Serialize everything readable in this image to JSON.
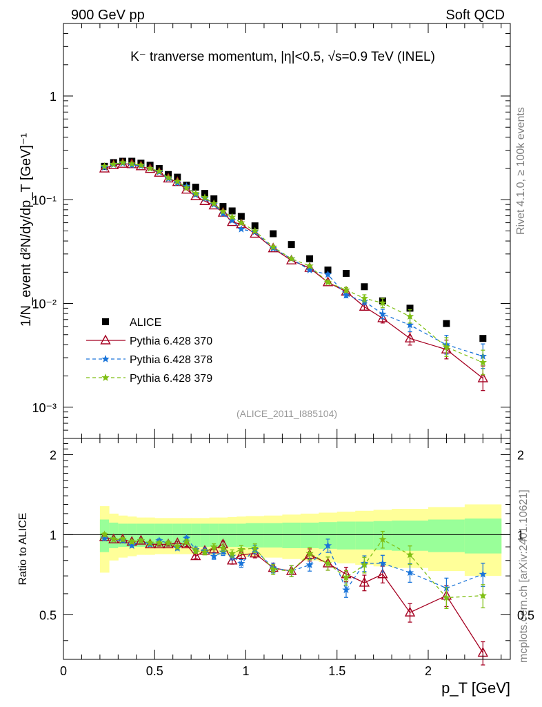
{
  "header": {
    "left": "900 GeV pp",
    "right": "Soft QCD"
  },
  "side_labels": {
    "rivet": "Rivet 4.1.0, ≥ 100k events",
    "mcplots": "mcplots.cern.ch [arXiv:2401.10621]"
  },
  "chart_data": [
    {
      "type": "scatter",
      "panel": "main",
      "title": "K⁻ tranverse momentum, |η|<0.5, √s=0.9 TeV (INEL)",
      "analysis_tag": "(ALICE_2011_I885104)",
      "xlabel": "p_T [GeV]",
      "ylabel": "1/N_event d²N/dy/dp_T [GeV]⁻¹",
      "xlim": [
        0,
        2.45
      ],
      "ylim": [
        0.0005,
        5
      ],
      "yscale": "log",
      "x_ticks": [
        "0",
        "0.5",
        "1",
        "1.5",
        "2"
      ],
      "y_ticks": [
        "10⁻³",
        "10⁻²",
        "10⁻¹",
        "1"
      ],
      "legend_position": "left",
      "series": [
        {
          "name": "ALICE",
          "style": "marker-square",
          "color": "#000000",
          "x": [
            0.225,
            0.275,
            0.325,
            0.375,
            0.425,
            0.475,
            0.525,
            0.575,
            0.625,
            0.675,
            0.725,
            0.775,
            0.825,
            0.875,
            0.925,
            0.975,
            1.05,
            1.15,
            1.25,
            1.35,
            1.45,
            1.55,
            1.65,
            1.75,
            1.9,
            2.1,
            2.3
          ],
          "y": [
            0.21,
            0.228,
            0.235,
            0.235,
            0.225,
            0.215,
            0.2,
            0.175,
            0.165,
            0.138,
            0.132,
            0.115,
            0.102,
            0.086,
            0.078,
            0.069,
            0.056,
            0.047,
            0.037,
            0.027,
            0.021,
            0.0195,
            0.0145,
            0.0106,
            0.009,
            0.0064,
            0.0046
          ]
        },
        {
          "name": "Pythia 6.428 370",
          "style": "solid-triangle",
          "color": "#a50021",
          "x": [
            0.225,
            0.275,
            0.325,
            0.375,
            0.425,
            0.475,
            0.525,
            0.575,
            0.625,
            0.675,
            0.725,
            0.775,
            0.825,
            0.875,
            0.925,
            0.975,
            1.05,
            1.15,
            1.25,
            1.35,
            1.45,
            1.55,
            1.65,
            1.75,
            1.9,
            2.1,
            2.3
          ],
          "y": [
            0.2,
            0.215,
            0.222,
            0.22,
            0.21,
            0.198,
            0.182,
            0.16,
            0.148,
            0.125,
            0.108,
            0.097,
            0.088,
            0.075,
            0.061,
            0.058,
            0.047,
            0.034,
            0.026,
            0.022,
            0.016,
            0.013,
            0.0093,
            0.0072,
            0.0046,
            0.0036,
            0.0019
          ]
        },
        {
          "name": "Pythia 6.428 378",
          "style": "dashed-star",
          "color": "#1a74d9",
          "x": [
            0.225,
            0.275,
            0.325,
            0.375,
            0.425,
            0.475,
            0.525,
            0.575,
            0.625,
            0.675,
            0.725,
            0.775,
            0.825,
            0.875,
            0.925,
            0.975,
            1.05,
            1.15,
            1.25,
            1.35,
            1.45,
            1.55,
            1.65,
            1.75,
            1.9,
            2.1,
            2.3
          ],
          "y": [
            0.205,
            0.218,
            0.225,
            0.215,
            0.212,
            0.2,
            0.185,
            0.16,
            0.145,
            0.135,
            0.112,
            0.103,
            0.09,
            0.073,
            0.063,
            0.052,
            0.049,
            0.034,
            0.027,
            0.021,
            0.019,
            0.012,
            0.0105,
            0.0079,
            0.0062,
            0.004,
            0.0031
          ]
        },
        {
          "name": "Pythia 6.428 379",
          "style": "dashed-star",
          "color": "#7fbf14",
          "x": [
            0.225,
            0.275,
            0.325,
            0.375,
            0.425,
            0.475,
            0.525,
            0.575,
            0.625,
            0.675,
            0.725,
            0.775,
            0.825,
            0.875,
            0.925,
            0.975,
            1.05,
            1.15,
            1.25,
            1.35,
            1.45,
            1.55,
            1.65,
            1.75,
            1.9,
            2.1,
            2.3
          ],
          "y": [
            0.21,
            0.22,
            0.228,
            0.222,
            0.215,
            0.2,
            0.188,
            0.163,
            0.15,
            0.13,
            0.115,
            0.105,
            0.092,
            0.077,
            0.068,
            0.06,
            0.05,
            0.035,
            0.027,
            0.023,
            0.016,
            0.0135,
            0.0112,
            0.0101,
            0.0075,
            0.0038,
            0.0027
          ]
        }
      ]
    },
    {
      "type": "line",
      "panel": "ratio",
      "ylabel": "Ratio to ALICE",
      "xlabel": "p_T [GeV]",
      "xlim": [
        0,
        2.45
      ],
      "ylim": [
        0.34,
        2.3
      ],
      "yscale": "log",
      "y_ticks": [
        "0.5",
        "1",
        "2"
      ],
      "x_ticks": [
        "0",
        "0.5",
        "1",
        "1.5",
        "2"
      ],
      "bands": {
        "bin_edges": [
          0.2,
          0.25,
          0.3,
          0.35,
          0.4,
          0.45,
          0.5,
          0.55,
          0.6,
          0.65,
          0.7,
          0.75,
          0.8,
          0.85,
          0.9,
          0.95,
          1.0,
          1.1,
          1.2,
          1.3,
          1.4,
          1.5,
          1.6,
          1.7,
          1.8,
          2.0,
          2.2,
          2.4
        ],
        "green_halfwidth": [
          0.14,
          0.11,
          0.1,
          0.1,
          0.1,
          0.1,
          0.1,
          0.1,
          0.1,
          0.1,
          0.1,
          0.1,
          0.1,
          0.1,
          0.1,
          0.1,
          0.105,
          0.105,
          0.11,
          0.11,
          0.115,
          0.12,
          0.12,
          0.125,
          0.13,
          0.14,
          0.15
        ],
        "yellow_halfwidth": [
          0.28,
          0.2,
          0.18,
          0.17,
          0.16,
          0.16,
          0.155,
          0.155,
          0.155,
          0.155,
          0.155,
          0.155,
          0.16,
          0.16,
          0.165,
          0.17,
          0.175,
          0.18,
          0.19,
          0.2,
          0.21,
          0.22,
          0.23,
          0.24,
          0.25,
          0.27,
          0.3
        ]
      },
      "series": [
        {
          "name": "Pythia 6.428 370",
          "color": "#a50021",
          "x": [
            0.225,
            0.275,
            0.325,
            0.375,
            0.425,
            0.475,
            0.525,
            0.575,
            0.625,
            0.675,
            0.725,
            0.775,
            0.825,
            0.875,
            0.925,
            0.975,
            1.05,
            1.15,
            1.25,
            1.35,
            1.45,
            1.55,
            1.65,
            1.75,
            1.9,
            2.1,
            2.3
          ],
          "y": [
            0.98,
            0.96,
            0.96,
            0.94,
            0.95,
            0.92,
            0.92,
            0.92,
            0.93,
            0.92,
            0.83,
            0.87,
            0.88,
            0.92,
            0.8,
            0.84,
            0.85,
            0.75,
            0.73,
            0.84,
            0.78,
            0.71,
            0.66,
            0.71,
            0.51,
            0.59,
            0.36
          ]
        },
        {
          "name": "Pythia 6.428 378",
          "color": "#1a74d9",
          "x": [
            0.225,
            0.275,
            0.325,
            0.375,
            0.425,
            0.475,
            0.525,
            0.575,
            0.625,
            0.675,
            0.725,
            0.775,
            0.825,
            0.875,
            0.925,
            0.975,
            1.05,
            1.15,
            1.25,
            1.35,
            1.45,
            1.55,
            1.65,
            1.75,
            1.9,
            2.1,
            2.3
          ],
          "y": [
            0.97,
            0.96,
            0.95,
            0.91,
            0.95,
            0.92,
            0.95,
            0.93,
            0.89,
            0.97,
            0.88,
            0.87,
            0.83,
            0.86,
            0.83,
            0.78,
            0.88,
            0.75,
            0.73,
            0.77,
            0.91,
            0.62,
            0.78,
            0.78,
            0.72,
            0.63,
            0.71
          ]
        },
        {
          "name": "Pythia 6.428 379",
          "color": "#7fbf14",
          "x": [
            0.225,
            0.275,
            0.325,
            0.375,
            0.425,
            0.475,
            0.525,
            0.575,
            0.625,
            0.675,
            0.725,
            0.775,
            0.825,
            0.875,
            0.925,
            0.975,
            1.05,
            1.15,
            1.25,
            1.35,
            1.45,
            1.55,
            1.65,
            1.75,
            1.9,
            2.1,
            2.3
          ],
          "y": [
            1.0,
            0.96,
            0.96,
            0.94,
            0.95,
            0.93,
            0.93,
            0.93,
            0.9,
            0.94,
            0.87,
            0.86,
            0.9,
            0.89,
            0.85,
            0.88,
            0.89,
            0.74,
            0.73,
            0.85,
            0.78,
            0.69,
            0.77,
            0.96,
            0.84,
            0.58,
            0.59
          ]
        }
      ]
    }
  ]
}
